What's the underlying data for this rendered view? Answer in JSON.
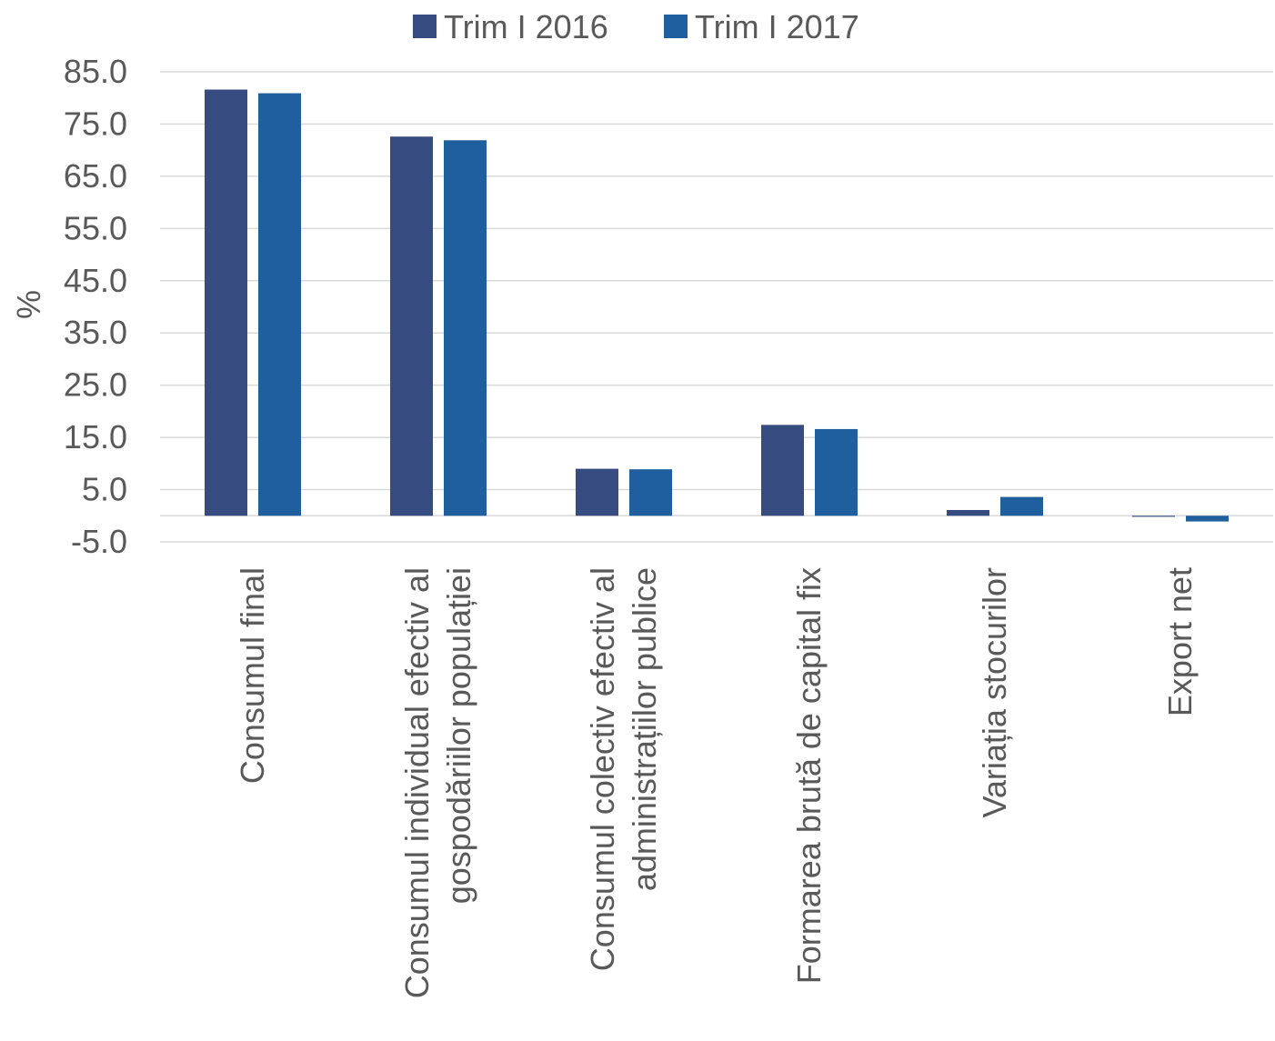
{
  "chart_data": {
    "type": "bar",
    "title": "",
    "xlabel": "",
    "ylabel": "%",
    "ylim": [
      -5,
      85
    ],
    "yticks": [
      -5,
      5,
      15,
      25,
      35,
      45,
      55,
      65,
      75,
      85
    ],
    "ytick_labels": [
      "-5.0",
      "5.0",
      "15.0",
      "25.0",
      "35.0",
      "45.0",
      "55.0",
      "65.0",
      "75.0",
      "85.0"
    ],
    "grid": true,
    "legend_position": "top",
    "categories": [
      [
        "Consumul final"
      ],
      [
        "Consumul individual efectiv al",
        "gospodăriilor populației"
      ],
      [
        "Consumul colectiv efectiv al",
        "administrațiilor publice"
      ],
      [
        "Formarea brută de capital fix"
      ],
      [
        "Variația stocurilor"
      ],
      [
        "Export net"
      ]
    ],
    "series": [
      {
        "name": "Trim I 2016",
        "color": "#364B7F",
        "values": [
          81.6,
          72.6,
          9.0,
          17.4,
          1.1,
          -0.2
        ]
      },
      {
        "name": "Trim I 2017",
        "color": "#1F5F9E",
        "values": [
          80.9,
          71.9,
          8.9,
          16.6,
          3.6,
          -1.1
        ]
      }
    ]
  }
}
